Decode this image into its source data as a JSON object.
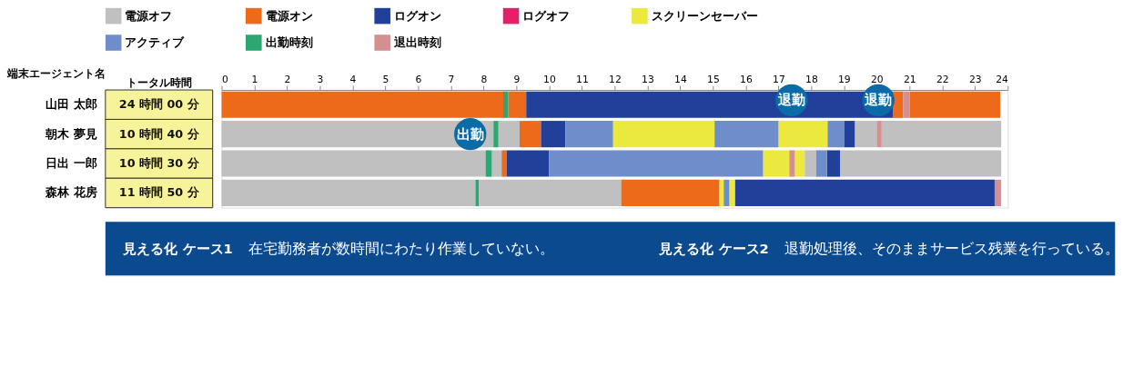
{
  "chart_data": {
    "type": "bar",
    "orientation": "horizontal",
    "categories": [
      "山田 太郎",
      "朝木 夢見",
      "日出 一郎",
      "森林 花房"
    ],
    "y2_categories": [
      "24 時間 00 分",
      "10 時間 40 分",
      "10 時間 30 分",
      "11 時間 50 分"
    ],
    "ylabel": "端末エージェント名",
    "y2label": "トータル時間",
    "xlim": [
      0,
      24
    ],
    "xticks": [
      0,
      1,
      2,
      3,
      4,
      5,
      6,
      7,
      8,
      9,
      10,
      11,
      12,
      13,
      14,
      15,
      16,
      17,
      18,
      19,
      20,
      21,
      22,
      23,
      24
    ],
    "legend": "top",
    "grid": false,
    "series": [
      {
        "name": "電源オフ",
        "color": "#c0c0c0",
        "values": [
          null,
          8.3,
          8.06,
          7.75
        ],
        "base": [
          null,
          0,
          0,
          0
        ]
      },
      {
        "color": "#c0c0c0",
        "values": [
          null,
          0.65,
          0.3,
          4.35
        ],
        "base": [
          null,
          8.45,
          8.25,
          7.85
        ]
      },
      {
        "color": "#c0c0c0",
        "values": [
          null,
          0.67,
          0.35,
          null
        ],
        "base": [
          null,
          19.33,
          17.8,
          null
        ]
      },
      {
        "color": "#c0c0c0",
        "values": [
          null,
          3.65,
          4.92,
          null
        ],
        "base": [
          null,
          20.15,
          18.88,
          null
        ]
      },
      {
        "name": "電源オン",
        "color": "#ec6a1a",
        "values": [
          8.6,
          0.65,
          0.15,
          3.0
        ],
        "base": [
          0,
          9.1,
          8.55,
          12.2
        ]
      },
      {
        "color": "#ec6a1a",
        "values": [
          0.55,
          null,
          null,
          null
        ],
        "base": [
          8.75,
          null,
          null,
          null
        ]
      },
      {
        "color": "#ec6a1a",
        "values": [
          0.3,
          null,
          null,
          null
        ],
        "base": [
          20.5,
          null,
          null,
          null
        ]
      },
      {
        "color": "#ec6a1a",
        "values": [
          2.77,
          null,
          null,
          null
        ],
        "base": [
          21.0,
          null,
          null,
          null
        ]
      },
      {
        "name": "ログオン",
        "color": "#21409a",
        "values": [
          11.2,
          0.75,
          1.3,
          7.93
        ],
        "base": [
          9.3,
          9.75,
          8.7,
          15.67
        ]
      },
      {
        "color": "#21409a",
        "values": [
          null,
          0.33,
          0.4,
          null
        ],
        "base": [
          null,
          19.0,
          18.48,
          null
        ]
      },
      {
        "name": "ログオフ",
        "color": "#e5206a",
        "values": [
          null,
          null,
          null,
          null
        ],
        "base": [
          null,
          null,
          null,
          null
        ]
      },
      {
        "name": "スクリーンセーバー",
        "color": "#ebe93d",
        "values": [
          null,
          3.1,
          0.8,
          0.13
        ],
        "base": [
          null,
          11.95,
          16.53,
          15.2
        ]
      },
      {
        "color": "#ebe93d",
        "values": [
          null,
          1.5,
          0.3,
          0.17
        ],
        "base": [
          null,
          17.0,
          17.5,
          15.5
        ]
      },
      {
        "name": "アクティブ",
        "color": "#6f8ccb",
        "values": [
          null,
          1.45,
          6.53,
          0.17
        ],
        "base": [
          null,
          10.5,
          10.0,
          15.33
        ]
      },
      {
        "color": "#6f8ccb",
        "values": [
          null,
          1.95,
          0.33,
          null
        ],
        "base": [
          null,
          15.05,
          18.15,
          null
        ]
      },
      {
        "color": "#6f8ccb",
        "values": [
          null,
          0.5,
          null,
          null
        ],
        "base": [
          null,
          18.5,
          null,
          null
        ]
      },
      {
        "name": "出勤時刻",
        "color": "#2ea672",
        "values": [
          0.15,
          0.15,
          0.19,
          0.1
        ],
        "base": [
          8.6,
          8.3,
          8.06,
          7.75
        ]
      },
      {
        "name": "退出時刻",
        "color": "#d49090",
        "values": [
          0.2,
          0.15,
          0.17,
          0.2
        ],
        "base": [
          20.8,
          20.0,
          17.33,
          23.6
        ]
      }
    ],
    "annotations": [
      {
        "text": "出勤",
        "x": 8.3,
        "y": "朝木 夢見"
      },
      {
        "text": "退勤",
        "x": 17.4,
        "y": "朝木 夢見"
      },
      {
        "text": "退勤",
        "x": 20.05,
        "y": "朝木 夢見"
      },
      "見える化 ケース1",
      "在宅勤務者が数時間にわたり作業していない。",
      "見える化 ケース2",
      "退勤処理後、そのままサービス残業を行っている。"
    ]
  }
}
